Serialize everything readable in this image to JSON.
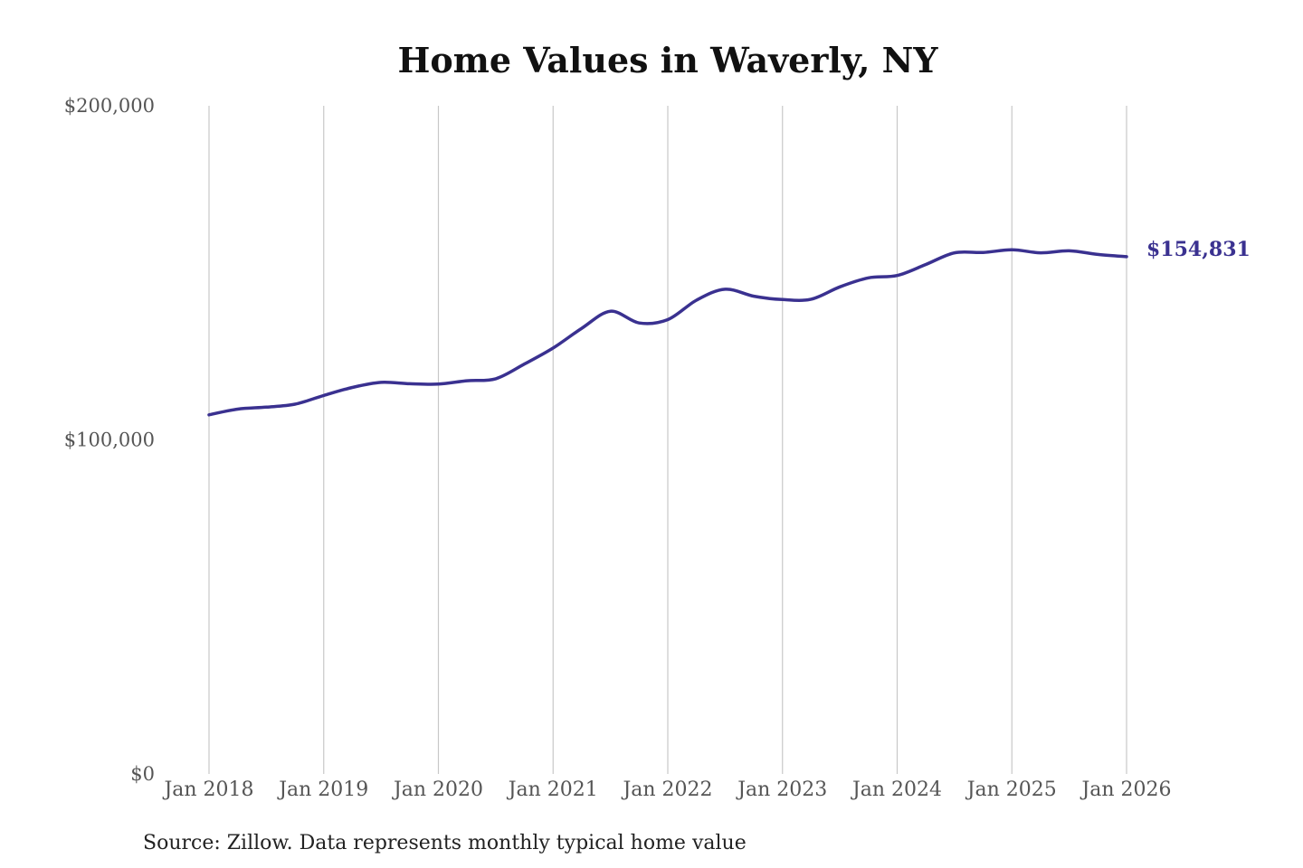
{
  "chart_data": {
    "type": "line",
    "title": "Home Values in Waverly, NY",
    "source": "Source: Zillow. Data represents monthly typical home value",
    "ylim": [
      0,
      200000
    ],
    "yticks": [
      {
        "value": 0,
        "label": "$0"
      },
      {
        "value": 100000,
        "label": "$100,000"
      },
      {
        "value": 200000,
        "label": "$200,000"
      }
    ],
    "xlim": [
      "2018-01",
      "2026-01"
    ],
    "xticks": [
      {
        "value": "2018-01",
        "label": "Jan 2018"
      },
      {
        "value": "2019-01",
        "label": "Jan 2019"
      },
      {
        "value": "2020-01",
        "label": "Jan 2020"
      },
      {
        "value": "2021-01",
        "label": "Jan 2021"
      },
      {
        "value": "2022-01",
        "label": "Jan 2022"
      },
      {
        "value": "2023-01",
        "label": "Jan 2023"
      },
      {
        "value": "2024-01",
        "label": "Jan 2024"
      },
      {
        "value": "2025-01",
        "label": "Jan 2025"
      },
      {
        "value": "2026-01",
        "label": "Jan 2026"
      }
    ],
    "grid": {
      "vertical": true,
      "horizontal": false
    },
    "line_color": "#3a3190",
    "series": [
      {
        "x": [
          "2018-01",
          "2018-04",
          "2018-07",
          "2018-10",
          "2019-01",
          "2019-04",
          "2019-07",
          "2019-10",
          "2020-01",
          "2020-04",
          "2020-07",
          "2020-10",
          "2021-01",
          "2021-04",
          "2021-07",
          "2021-10",
          "2022-01",
          "2022-04",
          "2022-07",
          "2022-10",
          "2023-01",
          "2023-04",
          "2023-07",
          "2023-10",
          "2024-01",
          "2024-04",
          "2024-07",
          "2024-10",
          "2025-01",
          "2025-04",
          "2025-07",
          "2025-10",
          "2026-01"
        ],
        "values": [
          107500,
          109200,
          109800,
          110700,
          113300,
          115700,
          117200,
          116800,
          116700,
          117700,
          118300,
          122700,
          127500,
          133400,
          138500,
          135000,
          136000,
          141800,
          145100,
          143000,
          142000,
          142100,
          145800,
          148500,
          149200,
          152500,
          156000,
          156100,
          156900,
          156000,
          156600,
          155500,
          154831
        ]
      }
    ],
    "end_label": "$154,831"
  }
}
